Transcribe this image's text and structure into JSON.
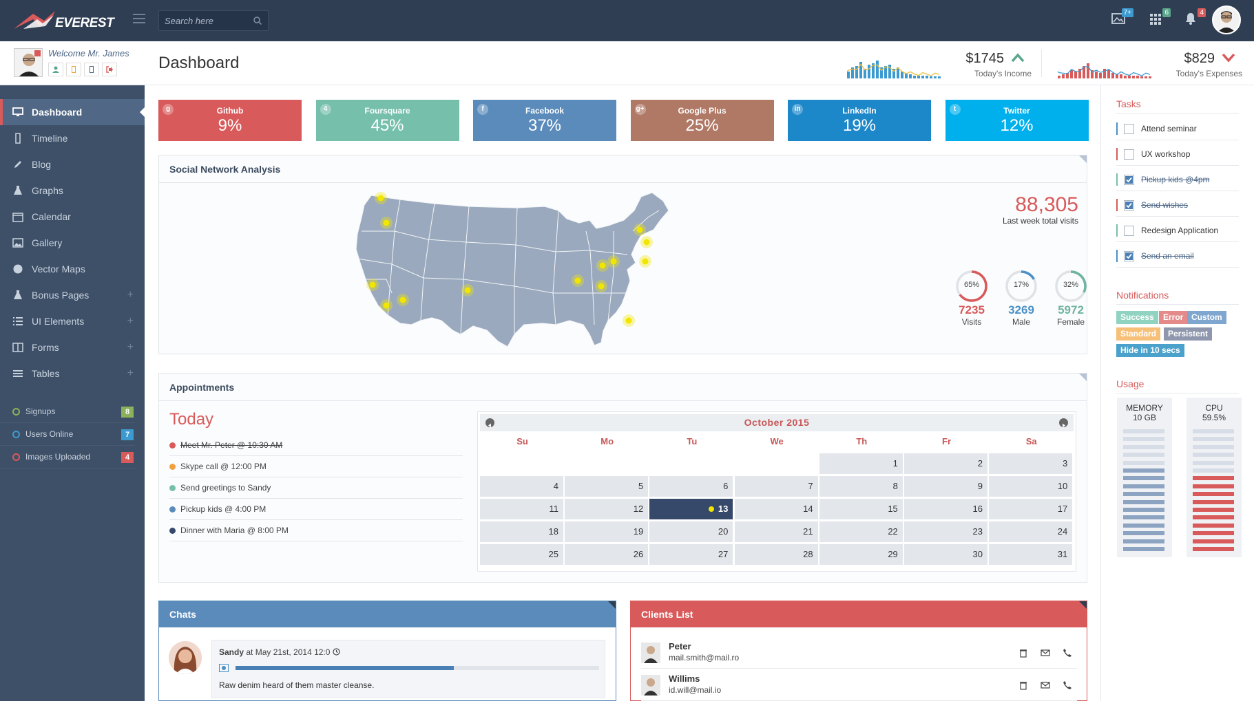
{
  "app": {
    "name": "EVEREST"
  },
  "search": {
    "placeholder": "Search here"
  },
  "top_badges": {
    "gallery": "7+",
    "apps": "6",
    "bell": "4"
  },
  "user": {
    "welcome": "Welcome Mr. James"
  },
  "page": {
    "title": "Dashboard"
  },
  "income": {
    "value": "$1745",
    "label": "Today's Income"
  },
  "expenses": {
    "value": "$829",
    "label": "Today's Expenses"
  },
  "sidebar": {
    "items": [
      {
        "label": "Dashboard",
        "icon": "monitor-icon"
      },
      {
        "label": "Timeline",
        "icon": "mobile-icon"
      },
      {
        "label": "Blog",
        "icon": "pencil-icon"
      },
      {
        "label": "Graphs",
        "icon": "flask-icon"
      },
      {
        "label": "Calendar",
        "icon": "calendar-icon"
      },
      {
        "label": "Gallery",
        "icon": "image-icon"
      },
      {
        "label": "Vector Maps",
        "icon": "globe-icon"
      },
      {
        "label": "Bonus Pages",
        "icon": "flask-icon"
      },
      {
        "label": "UI Elements",
        "icon": "list-icon"
      },
      {
        "label": "Forms",
        "icon": "columns-icon"
      },
      {
        "label": "Tables",
        "icon": "bars-icon"
      }
    ],
    "stats": [
      {
        "label": "Signups",
        "count": "8",
        "color": "#8bb15a"
      },
      {
        "label": "Users Online",
        "count": "7",
        "color": "#3d9ad1"
      },
      {
        "label": "Images Uploaded",
        "count": "4",
        "color": "#d95a5a"
      }
    ]
  },
  "social": [
    {
      "name": "Github",
      "value": "9%",
      "color": "#d95a5a",
      "glyph": "g"
    },
    {
      "name": "Foursquare",
      "value": "45%",
      "color": "#75bfab",
      "glyph": "4"
    },
    {
      "name": "Facebook",
      "value": "37%",
      "color": "#5b8bbb",
      "glyph": "f"
    },
    {
      "name": "Google Plus",
      "value": "25%",
      "color": "#b07966",
      "glyph": "g+"
    },
    {
      "name": "LinkedIn",
      "value": "19%",
      "color": "#1c87c9",
      "glyph": "in"
    },
    {
      "name": "Twitter",
      "value": "12%",
      "color": "#00b0ed",
      "glyph": "t"
    }
  ],
  "social_analysis": {
    "title": "Social Network Analysis",
    "total": "88,305",
    "total_label": "Last week total visits",
    "donuts": [
      {
        "pct": "65%",
        "value": "7235",
        "label": "Visits",
        "color": "#d95a5a",
        "fraction": 0.65
      },
      {
        "pct": "17%",
        "value": "3269",
        "label": "Male",
        "color": "#4a90c6",
        "fraction": 0.17
      },
      {
        "pct": "32%",
        "value": "5972",
        "label": "Female",
        "color": "#6fb3a0",
        "fraction": 0.32
      }
    ]
  },
  "appointments": {
    "title": "Appointments",
    "today": "Today",
    "items": [
      {
        "text": "Meet Mr. Peter @ 10:30 AM",
        "color": "#d95a5a",
        "done": true
      },
      {
        "text": "Skype call @ 12:00 PM",
        "color": "#f0a040",
        "done": false
      },
      {
        "text": "Send greetings to Sandy",
        "color": "#75bfab",
        "done": false
      },
      {
        "text": "Pickup kids @ 4:00 PM",
        "color": "#5b8bbb",
        "done": false
      },
      {
        "text": "Dinner with Maria @ 8:00 PM",
        "color": "#36496a",
        "done": false
      }
    ]
  },
  "calendar": {
    "month": "October 2015",
    "days": [
      "Su",
      "Mo",
      "Tu",
      "We",
      "Th",
      "Fr",
      "Sa"
    ],
    "dates": [
      "1",
      "2",
      "3",
      "4",
      "5",
      "6",
      "7",
      "8",
      "9",
      "10",
      "11",
      "12",
      "13",
      "14",
      "15",
      "16",
      "17",
      "18",
      "19",
      "20",
      "21",
      "22",
      "23",
      "24",
      "25",
      "26",
      "27",
      "28",
      "29",
      "30",
      "31"
    ],
    "first_weekday": 4,
    "today": "13"
  },
  "chats": {
    "title": "Chats",
    "author": "Sandy",
    "meta": "at May 21st, 2014 12:0",
    "message": "Raw denim heard of them master cleanse.",
    "progress": 0.6
  },
  "clients": {
    "title": "Clients List",
    "items": [
      {
        "name": "Peter",
        "email": "mail.smith@mail.ro"
      },
      {
        "name": "Willims",
        "email": "id.will@mail.io"
      }
    ]
  },
  "tasks": {
    "title": "Tasks",
    "items": [
      {
        "label": "Attend seminar",
        "done": false,
        "bar": "#4a90c6"
      },
      {
        "label": "UX workshop",
        "done": false,
        "bar": "#d95a5a"
      },
      {
        "label": "Pickup kids @4pm",
        "done": true,
        "bar": "#75bfab"
      },
      {
        "label": "Send wishes",
        "done": true,
        "bar": "#d95a5a"
      },
      {
        "label": "Redesign Application",
        "done": false,
        "bar": "#75bfab"
      },
      {
        "label": "Send an email",
        "done": true,
        "bar": "#4a90c6"
      }
    ]
  },
  "notifications": {
    "title": "Notifications",
    "buttons": [
      {
        "label": "Success",
        "color": "#8fd3c0"
      },
      {
        "label": "Error",
        "color": "#e58a8a"
      },
      {
        "label": "Custom",
        "color": "#7ea6cf"
      },
      {
        "label": "Standard",
        "color": "#f7c078"
      },
      {
        "label": "Persistent",
        "color": "#8e97ad"
      },
      {
        "label": "Hide in 10 secs",
        "color": "#4aa1cc"
      }
    ]
  },
  "usage": {
    "title": "Usage",
    "memory": {
      "label": "MEMORY",
      "value": "10 GB",
      "level": 0.66
    },
    "cpu": {
      "label": "CPU",
      "value": "59.5%",
      "level": 0.595
    }
  },
  "colors": {
    "topbar": "#2f3e53",
    "sidebar": "#3e5068",
    "accent": "#d95a5a"
  }
}
